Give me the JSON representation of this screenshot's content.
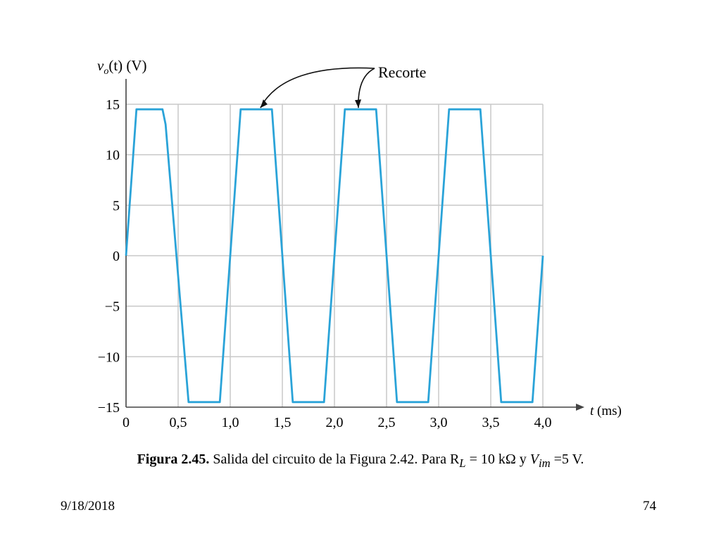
{
  "chart_data": {
    "type": "line",
    "ylabel_var": "v",
    "ylabel_sub": "o",
    "ylabel_rest": "(t) (V)",
    "xlabel_var": "t",
    "xlabel_rest": " (ms)",
    "xlim": [
      0,
      4.0
    ],
    "ylim": [
      -15,
      15
    ],
    "x_ticks": [
      0,
      0.5,
      1.0,
      1.5,
      2.0,
      2.5,
      3.0,
      3.5,
      4.0
    ],
    "x_tick_labels": [
      "0",
      "0,5",
      "1,0",
      "1,5",
      "2,0",
      "2,5",
      "3,0",
      "3,5",
      "4,0"
    ],
    "y_ticks": [
      15,
      10,
      5,
      0,
      -5,
      -10,
      -15
    ],
    "y_tick_labels": [
      "15",
      "10",
      "5",
      "0",
      "−5",
      "−10",
      "−15"
    ],
    "grid": true,
    "line_color": "#2aa3d8",
    "series": [
      {
        "x": [
          0,
          0.1,
          0.35,
          0.38,
          0.6,
          0.9,
          1.1,
          1.4,
          1.6,
          1.9,
          2.1,
          2.4,
          2.6,
          2.9,
          3.1,
          3.4,
          3.6,
          3.9,
          4.0
        ],
        "y": [
          0,
          14.5,
          14.5,
          13,
          -14.5,
          -14.5,
          14.5,
          14.5,
          -14.5,
          -14.5,
          14.5,
          14.5,
          -14.5,
          -14.5,
          14.5,
          14.5,
          -14.5,
          -14.5,
          0
        ]
      }
    ],
    "annotation": {
      "text": "Recorte",
      "targets_x": [
        1.29,
        2.23
      ],
      "targets_y": 14.5
    }
  },
  "caption": {
    "bold": "Figura 2.45.",
    "text": " Salida del circuito de la Figura 2.42. Para R",
    "rl_sub": "L",
    "mid": " = 10 kΩ y ",
    "v": "V",
    "v_sub": "im",
    "end": " =5 V."
  },
  "footer": {
    "date": "9/18/2018",
    "page": "74"
  }
}
